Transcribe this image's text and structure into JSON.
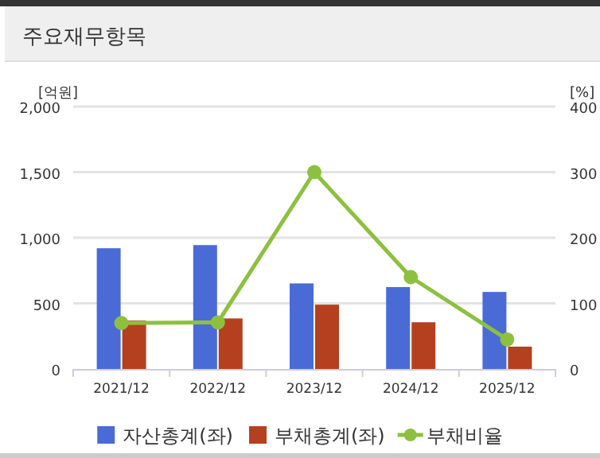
{
  "chart_data": {
    "type": "bar",
    "title": "주요재무항목",
    "ylabel": "[억원]",
    "y2label": "[%]",
    "categories": [
      "2021/12",
      "2022/12",
      "2023/12",
      "2024/12",
      "2025/12"
    ],
    "series": [
      {
        "name": "자산총계(좌)",
        "color": "#4a6bd6",
        "values": [
          920,
          944,
          652,
          624,
          587
        ]
      },
      {
        "name": "부채총계(좌)",
        "color": "#b5401f",
        "values": [
          369,
          385,
          490,
          356,
          170
        ]
      },
      {
        "name": "부채비율",
        "type": "line",
        "axis": "y2",
        "color": "#8dc03f",
        "marker": "circle",
        "values": [
          70,
          71,
          300,
          140,
          45
        ]
      }
    ],
    "ylim": [
      0,
      2000
    ],
    "yticks": [
      0,
      500,
      {
        "value": 1000,
        "label": "1,000"
      },
      {
        "value": 1500,
        "label": "1,500"
      },
      {
        "value": 2000,
        "label": "2,000"
      }
    ],
    "y2lim": [
      0,
      400
    ],
    "y2ticks": [
      0,
      100,
      200,
      300,
      400
    ],
    "grid": "y",
    "legend": "bottom"
  }
}
